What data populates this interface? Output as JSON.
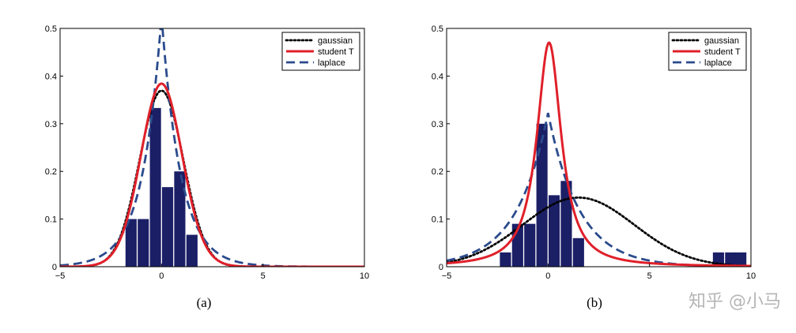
{
  "watermark": "知乎 @小马",
  "colors": {
    "bar": "#1b1f66",
    "gaussian": "#000000",
    "student": "#e0202a",
    "laplace": "#2b4b8c"
  },
  "chart_data": [
    {
      "type": "bar",
      "caption": "(a)",
      "xlim": [
        -5,
        10
      ],
      "ylim": [
        0,
        0.5
      ],
      "xticks": [
        "−5",
        "0",
        "5",
        "10"
      ],
      "yticks": [
        "0",
        "0.1",
        "0.2",
        "0.3",
        "0.4",
        "0.5"
      ],
      "bar_width": 0.55,
      "bars": {
        "x": [
          -1.5,
          -0.9,
          -0.3,
          0.3,
          0.9,
          1.5
        ],
        "values": [
          0.1,
          0.1,
          0.333,
          0.167,
          0.2,
          0.067
        ]
      },
      "legend": {
        "position": "top-right",
        "entries": [
          "gaussian",
          "student T",
          "laplace"
        ]
      },
      "series": [
        {
          "name": "gaussian",
          "dist": "gaussian",
          "params": {
            "mu": 0.0,
            "sigma": 1.08
          }
        },
        {
          "name": "student T",
          "dist": "student",
          "params": {
            "mu": 0.0,
            "sigma": 1.03,
            "nu": 30
          }
        },
        {
          "name": "laplace",
          "dist": "laplace",
          "params": {
            "mu": 0.0,
            "b": 0.95
          }
        }
      ]
    },
    {
      "type": "bar",
      "caption": "(b)",
      "xlim": [
        -5,
        10
      ],
      "ylim": [
        0,
        0.5
      ],
      "xticks": [
        "−5",
        "0",
        "5",
        "10"
      ],
      "yticks": [
        "0",
        "0.1",
        "0.2",
        "0.3",
        "0.4",
        "0.5"
      ],
      "bar_width": 0.55,
      "bars": {
        "x": [
          -2.1,
          -1.5,
          -0.9,
          -0.3,
          0.3,
          0.9,
          1.5,
          8.4,
          9.0,
          9.5
        ],
        "values": [
          0.03,
          0.09,
          0.09,
          0.3,
          0.15,
          0.18,
          0.06,
          0.03,
          0.03,
          0.03
        ]
      },
      "legend": {
        "position": "top-right",
        "entries": [
          "gaussian",
          "student T",
          "laplace"
        ]
      },
      "series": [
        {
          "name": "gaussian",
          "dist": "gaussian",
          "params": {
            "mu": 1.5,
            "sigma": 2.75
          }
        },
        {
          "name": "student T",
          "dist": "student",
          "params": {
            "mu": 0.05,
            "sigma": 0.7,
            "nu": 1.2
          }
        },
        {
          "name": "laplace",
          "dist": "laplace",
          "params": {
            "mu": 0.0,
            "b": 1.55
          }
        }
      ]
    }
  ]
}
